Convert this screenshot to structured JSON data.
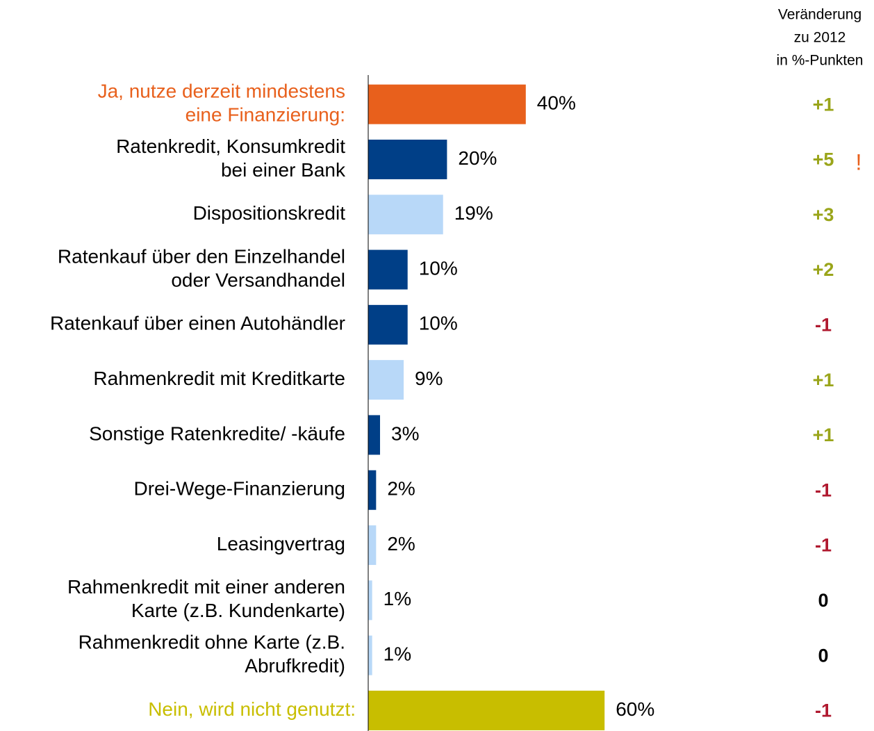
{
  "chart_data": {
    "type": "bar",
    "orientation": "horizontal",
    "categories": [
      [
        "Ja, nutze derzeit mindestens",
        "eine Finanzierung:"
      ],
      [
        "Ratenkredit, Konsumkredit",
        "bei einer Bank"
      ],
      [
        "Dispositionskredit"
      ],
      [
        "Ratenkauf über den Einzelhandel",
        "oder Versandhandel"
      ],
      [
        "Ratenkauf über einen Autohändler"
      ],
      [
        "Rahmenkredit mit Kreditkarte"
      ],
      [
        "Sonstige Ratenkredite/ -käufe"
      ],
      [
        "Drei-Wege-Finanzierung"
      ],
      [
        "Leasingvertrag"
      ],
      [
        "Rahmenkredit mit einer anderen",
        "Karte (z.B. Kundenkarte)"
      ],
      [
        "Rahmenkredit ohne Karte (z.B.",
        "Abrufkredit)"
      ],
      [
        "Nein, wird nicht genutzt:"
      ]
    ],
    "label_colors": [
      "#e8601c",
      "#000000",
      "#000000",
      "#000000",
      "#000000",
      "#000000",
      "#000000",
      "#000000",
      "#000000",
      "#000000",
      "#000000",
      "#c8be00"
    ],
    "values": [
      40,
      20,
      19,
      10,
      10,
      9,
      3,
      2,
      2,
      1,
      1,
      60
    ],
    "value_labels": [
      "40%",
      "20%",
      "19%",
      "10%",
      "10%",
      "9%",
      "3%",
      "2%",
      "2%",
      "1%",
      "1%",
      "60%"
    ],
    "colors": [
      "#e8601c",
      "#003f87",
      "#b8d8f8",
      "#003f87",
      "#003f87",
      "#b8d8f8",
      "#003f87",
      "#003f87",
      "#b8d8f8",
      "#b8d8f8",
      "#b8d8f8",
      "#c8be00"
    ],
    "xlim": [
      0,
      100
    ],
    "change_header": [
      "Veränderung",
      "zu 2012",
      "in %-Punkten"
    ],
    "changes": [
      1,
      5,
      3,
      2,
      -1,
      1,
      1,
      -1,
      -1,
      0,
      0,
      -1
    ],
    "change_labels": [
      "+1",
      "+5",
      "+3",
      "+2",
      "-1",
      "+1",
      "+1",
      "-1",
      "-1",
      "0",
      "0",
      "-1"
    ],
    "change_colors": [
      "#9aa51a",
      "#9aa51a",
      "#9aa51a",
      "#9aa51a",
      "#b0192f",
      "#9aa51a",
      "#9aa51a",
      "#b0192f",
      "#b0192f",
      "#000000",
      "#000000",
      "#b0192f"
    ],
    "annotation": "!"
  }
}
